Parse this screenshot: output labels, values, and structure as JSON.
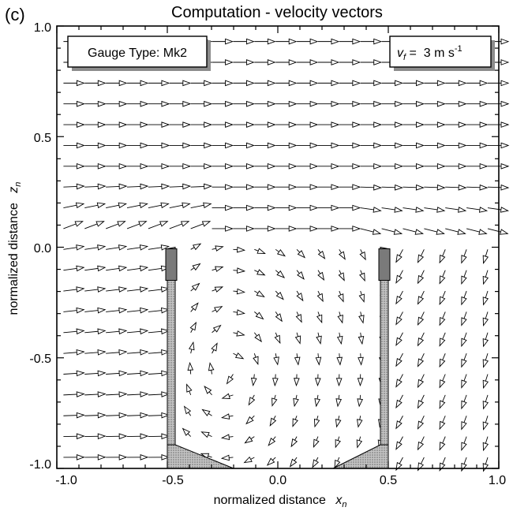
{
  "panel_label": "(c)",
  "chart_data": {
    "type": "vector-field",
    "title": "Computation - velocity vectors",
    "xlabel": "normalized distance",
    "xlabel_symbol": "x",
    "xlabel_sub": "n",
    "ylabel": "normalized distance",
    "ylabel_symbol": "z",
    "ylabel_sub": "n",
    "xlim": [
      -1.0,
      1.0
    ],
    "ylim": [
      -1.0,
      1.0
    ],
    "xticks": [
      "-1.0",
      "-0.5",
      "0.0",
      "0.5",
      "1.0"
    ],
    "yticks": [
      "-1.0",
      "-0.5",
      "0.0",
      "0.5",
      "1.0"
    ],
    "grid": false,
    "annotations": {
      "gauge_type": "Gauge Type: Mk2",
      "velocity_symbol": "v",
      "velocity_sub": "f",
      "velocity_value": " =  3 m s",
      "velocity_exp": "-1"
    },
    "gauge": {
      "wall_x": [
        -0.5,
        0.5
      ],
      "rim_z": 0.0,
      "bottom_z": -1.0,
      "fill_color": "#a8a8a8"
    }
  }
}
